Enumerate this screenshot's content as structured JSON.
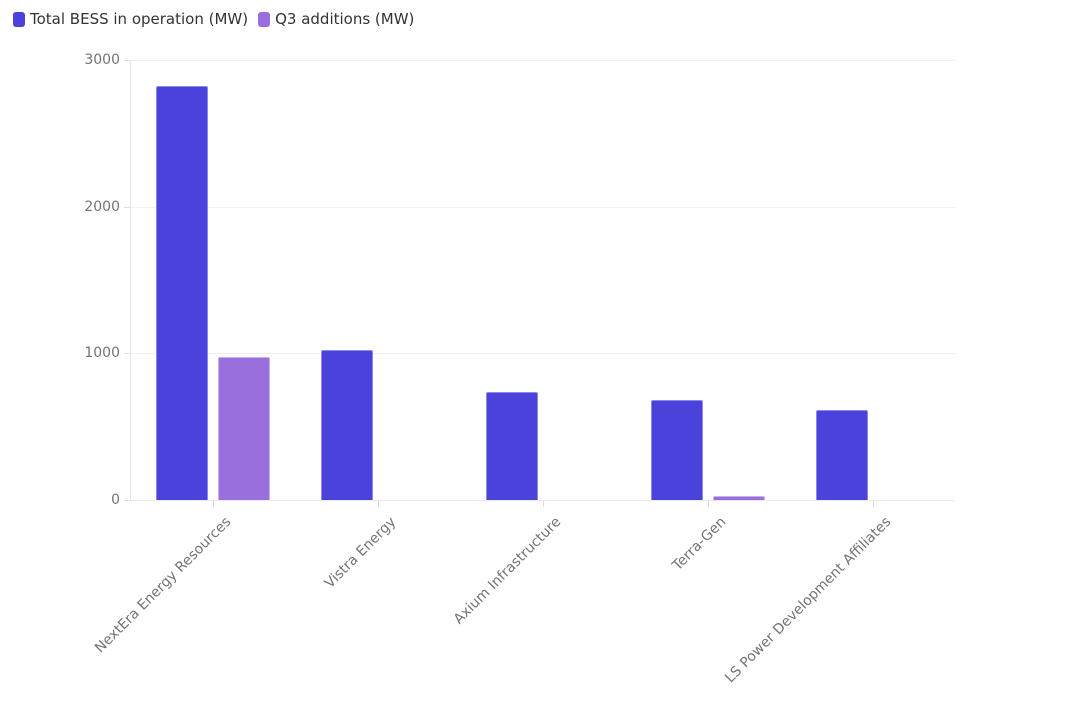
{
  "legend": {
    "items": [
      {
        "label": "Total BESS in operation (MW)"
      },
      {
        "label": "Q3 additions (MW)"
      }
    ]
  },
  "colors": {
    "series1_fill": "#4a42db",
    "series1_border": "#8d87ea",
    "series2_fill": "#9a6edc",
    "series2_border": "#c3aeee",
    "gridline": "#f1f1f4",
    "axis": "#e7e7ea",
    "tick_label": "#737373",
    "legend_text": "#333333"
  },
  "chart_data": {
    "type": "bar",
    "title": "",
    "xlabel": "",
    "ylabel": "",
    "grid": true,
    "legend_position": "top-left",
    "categories": [
      "NextEra Energy Resources",
      "Vistra Energy",
      "Axium Infrastructure",
      "Terra-Gen",
      "LS Power Development Affiliates"
    ],
    "series": [
      {
        "name": "Total BESS in operation (MW)",
        "color": "#4a42db",
        "border_color": "#8d87ea",
        "values": [
          2820,
          1020,
          735,
          680,
          615
        ]
      },
      {
        "name": "Q3 additions (MW)",
        "color": "#9a6edc",
        "border_color": "#c3aeee",
        "values": [
          975,
          0,
          0,
          25,
          0
        ]
      }
    ],
    "ylim": [
      0,
      3000
    ],
    "yticks": [
      0,
      1000,
      2000,
      3000
    ],
    "x_label_rotation_deg": 45
  }
}
